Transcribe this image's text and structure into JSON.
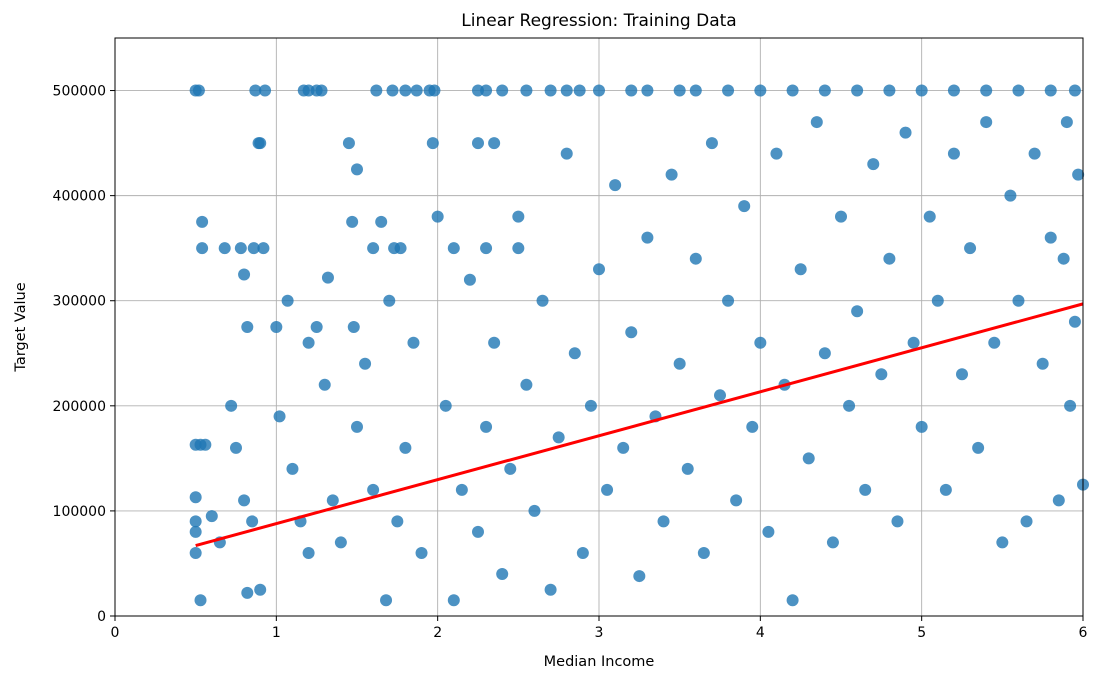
{
  "chart_data": {
    "type": "scatter",
    "title": "Linear Regression: Training Data",
    "xlabel": "Median Income",
    "ylabel": "Target Value",
    "xlim": [
      0,
      6
    ],
    "ylim": [
      0,
      550000
    ],
    "x_ticks": [
      0,
      1,
      2,
      3,
      4,
      5,
      6
    ],
    "y_ticks": [
      0,
      100000,
      200000,
      300000,
      400000,
      500000
    ],
    "grid": true,
    "legend": "none",
    "colors": {
      "points": "#1f77b4",
      "fit_line": "#ff0000",
      "grid": "#b0b0b0"
    },
    "series": [
      {
        "kind": "scatter",
        "points": [
          [
            0.5,
            500000
          ],
          [
            0.52,
            500000
          ],
          [
            0.87,
            500000
          ],
          [
            0.93,
            500000
          ],
          [
            1.17,
            500000
          ],
          [
            1.2,
            500000
          ],
          [
            1.25,
            500000
          ],
          [
            1.28,
            500000
          ],
          [
            1.62,
            500000
          ],
          [
            1.72,
            500000
          ],
          [
            1.8,
            500000
          ],
          [
            1.87,
            500000
          ],
          [
            1.95,
            500000
          ],
          [
            1.98,
            500000
          ],
          [
            2.25,
            500000
          ],
          [
            2.3,
            500000
          ],
          [
            2.4,
            500000
          ],
          [
            2.55,
            500000
          ],
          [
            2.7,
            500000
          ],
          [
            2.8,
            500000
          ],
          [
            2.88,
            500000
          ],
          [
            3.0,
            500000
          ],
          [
            3.2,
            500000
          ],
          [
            3.3,
            500000
          ],
          [
            3.5,
            500000
          ],
          [
            3.6,
            500000
          ],
          [
            3.8,
            500000
          ],
          [
            4.0,
            500000
          ],
          [
            4.2,
            500000
          ],
          [
            4.4,
            500000
          ],
          [
            4.6,
            500000
          ],
          [
            4.8,
            500000
          ],
          [
            5.0,
            500000
          ],
          [
            5.2,
            500000
          ],
          [
            5.4,
            500000
          ],
          [
            5.6,
            500000
          ],
          [
            5.8,
            500000
          ],
          [
            5.95,
            500000
          ],
          [
            0.89,
            450000
          ],
          [
            0.9,
            450000
          ],
          [
            1.45,
            450000
          ],
          [
            1.97,
            450000
          ],
          [
            2.25,
            450000
          ],
          [
            2.35,
            450000
          ],
          [
            0.54,
            375000
          ],
          [
            0.54,
            350000
          ],
          [
            0.68,
            350000
          ],
          [
            0.78,
            350000
          ],
          [
            0.86,
            350000
          ],
          [
            0.92,
            350000
          ],
          [
            1.6,
            350000
          ],
          [
            1.73,
            350000
          ],
          [
            1.77,
            350000
          ],
          [
            2.1,
            350000
          ],
          [
            2.3,
            350000
          ],
          [
            2.5,
            350000
          ],
          [
            1.65,
            375000
          ],
          [
            1.47,
            375000
          ],
          [
            0.8,
            325000
          ],
          [
            1.5,
            425000
          ],
          [
            1.0,
            275000
          ],
          [
            1.25,
            275000
          ],
          [
            1.48,
            275000
          ],
          [
            0.82,
            275000
          ],
          [
            1.07,
            300000
          ],
          [
            1.32,
            322000
          ],
          [
            1.2,
            260000
          ],
          [
            0.5,
            163000
          ],
          [
            0.53,
            163000
          ],
          [
            0.56,
            163000
          ],
          [
            0.5,
            113000
          ],
          [
            0.5,
            90000
          ],
          [
            0.5,
            80000
          ],
          [
            0.5,
            60000
          ],
          [
            0.53,
            15000
          ],
          [
            0.72,
            200000
          ],
          [
            0.75,
            160000
          ],
          [
            0.8,
            110000
          ],
          [
            0.85,
            90000
          ],
          [
            0.6,
            95000
          ],
          [
            0.65,
            70000
          ],
          [
            0.82,
            22000
          ],
          [
            0.9,
            25000
          ],
          [
            1.02,
            190000
          ],
          [
            1.1,
            140000
          ],
          [
            1.15,
            90000
          ],
          [
            1.2,
            60000
          ],
          [
            1.3,
            220000
          ],
          [
            1.35,
            110000
          ],
          [
            1.4,
            70000
          ],
          [
            1.5,
            180000
          ],
          [
            1.55,
            240000
          ],
          [
            1.6,
            120000
          ],
          [
            1.68,
            15000
          ],
          [
            1.7,
            300000
          ],
          [
            1.75,
            90000
          ],
          [
            1.8,
            160000
          ],
          [
            1.85,
            260000
          ],
          [
            1.9,
            60000
          ],
          [
            2.0,
            380000
          ],
          [
            2.05,
            200000
          ],
          [
            2.1,
            15000
          ],
          [
            2.15,
            120000
          ],
          [
            2.2,
            320000
          ],
          [
            2.25,
            80000
          ],
          [
            2.3,
            180000
          ],
          [
            2.35,
            260000
          ],
          [
            2.4,
            40000
          ],
          [
            2.45,
            140000
          ],
          [
            2.5,
            380000
          ],
          [
            2.55,
            220000
          ],
          [
            2.6,
            100000
          ],
          [
            2.65,
            300000
          ],
          [
            2.7,
            25000
          ],
          [
            2.75,
            170000
          ],
          [
            2.8,
            440000
          ],
          [
            2.85,
            250000
          ],
          [
            2.9,
            60000
          ],
          [
            2.95,
            200000
          ],
          [
            3.0,
            330000
          ],
          [
            3.05,
            120000
          ],
          [
            3.1,
            410000
          ],
          [
            3.15,
            160000
          ],
          [
            3.2,
            270000
          ],
          [
            3.25,
            38000
          ],
          [
            3.3,
            360000
          ],
          [
            3.35,
            190000
          ],
          [
            3.4,
            90000
          ],
          [
            3.45,
            420000
          ],
          [
            3.5,
            240000
          ],
          [
            3.55,
            140000
          ],
          [
            3.6,
            340000
          ],
          [
            3.65,
            60000
          ],
          [
            3.7,
            450000
          ],
          [
            3.75,
            210000
          ],
          [
            3.8,
            300000
          ],
          [
            3.85,
            110000
          ],
          [
            3.9,
            390000
          ],
          [
            3.95,
            180000
          ],
          [
            4.0,
            260000
          ],
          [
            4.05,
            80000
          ],
          [
            4.1,
            440000
          ],
          [
            4.15,
            220000
          ],
          [
            4.2,
            15000
          ],
          [
            4.25,
            330000
          ],
          [
            4.3,
            150000
          ],
          [
            4.35,
            470000
          ],
          [
            4.4,
            250000
          ],
          [
            4.45,
            70000
          ],
          [
            4.5,
            380000
          ],
          [
            4.55,
            200000
          ],
          [
            4.6,
            290000
          ],
          [
            4.65,
            120000
          ],
          [
            4.7,
            430000
          ],
          [
            4.75,
            230000
          ],
          [
            4.8,
            340000
          ],
          [
            4.85,
            90000
          ],
          [
            4.9,
            460000
          ],
          [
            4.95,
            260000
          ],
          [
            5.0,
            180000
          ],
          [
            5.05,
            380000
          ],
          [
            5.1,
            300000
          ],
          [
            5.15,
            120000
          ],
          [
            5.2,
            440000
          ],
          [
            5.25,
            230000
          ],
          [
            5.3,
            350000
          ],
          [
            5.35,
            160000
          ],
          [
            5.4,
            470000
          ],
          [
            5.45,
            260000
          ],
          [
            5.5,
            70000
          ],
          [
            5.55,
            400000
          ],
          [
            5.6,
            300000
          ],
          [
            5.65,
            90000
          ],
          [
            5.7,
            440000
          ],
          [
            5.75,
            240000
          ],
          [
            5.8,
            360000
          ],
          [
            5.85,
            110000
          ],
          [
            5.9,
            470000
          ],
          [
            5.95,
            280000
          ],
          [
            6.0,
            125000
          ],
          [
            5.97,
            420000
          ],
          [
            5.92,
            200000
          ],
          [
            5.88,
            340000
          ]
        ]
      },
      {
        "kind": "line",
        "x": [
          0.5,
          6.0
        ],
        "y": [
          67000,
          297000
        ]
      }
    ]
  }
}
